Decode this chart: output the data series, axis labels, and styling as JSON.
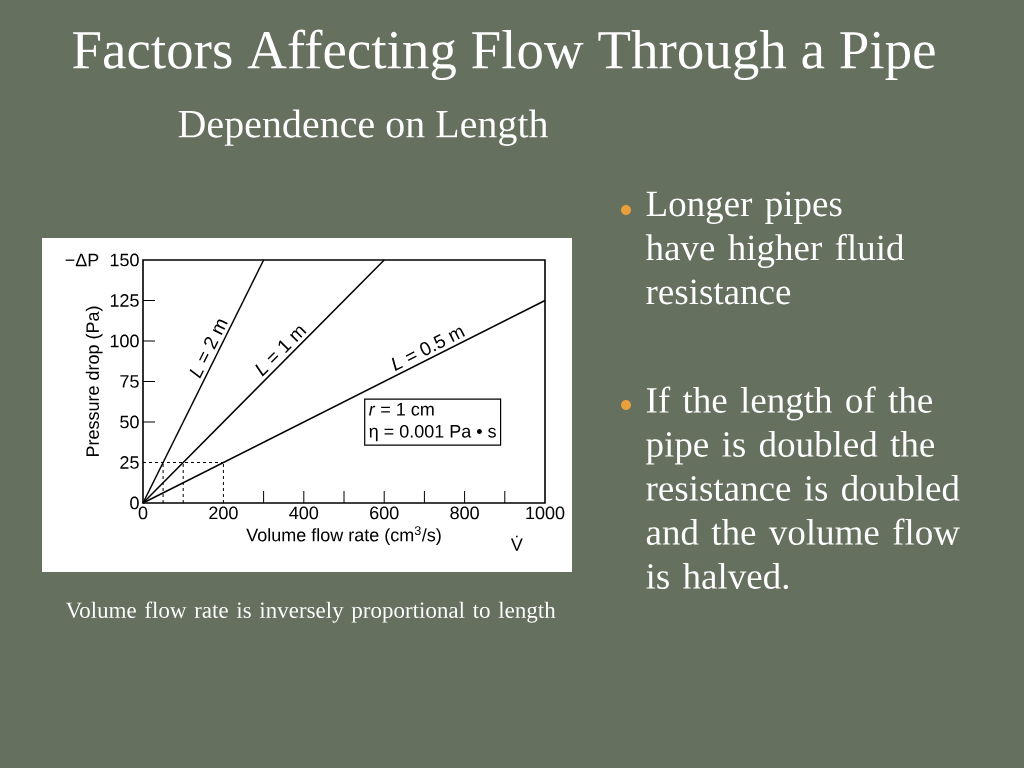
{
  "chart_data": {
    "type": "line",
    "title": "Factors Affecting Flow Through a Pipe",
    "subtitle": "Dependence on Length",
    "xlabel": "Volume flow rate (cm$^{3}$/s)",
    "ylabel": "Pressure drop (Pa)",
    "xlim": [
      0,
      1000
    ],
    "ylim": [
      0,
      150
    ],
    "xticks": [
      0,
      200,
      {
        "value": 300,
        "label": null
      },
      400,
      {
        "value": 500,
        "label": null
      },
      600,
      {
        "value": 700,
        "label": null
      },
      800,
      {
        "value": 900,
        "label": null
      },
      1000
    ],
    "yticks": [
      0,
      25,
      50,
      75,
      100,
      125,
      150
    ],
    "line_style": "solid",
    "series": [
      {
        "name": "*L* = 2 m",
        "color": "#000000",
        "x": [
          0,
          300
        ],
        "values": [
          0,
          150
        ]
      },
      {
        "name": "*L* = 1 m",
        "color": "#000000",
        "x": [
          0,
          600
        ],
        "values": [
          0,
          150
        ]
      },
      {
        "name": "*L* = 0.5 m",
        "color": "#000000",
        "x": [
          0,
          1000
        ],
        "values": [
          0,
          125
        ]
      },
      {
        "color": "#000000",
        "line_style": "dashed",
        "x": [
          0,
          200
        ],
        "values": [
          25,
          25
        ]
      },
      {
        "color": "#000000",
        "line_style": "dashed",
        "x": [
          50,
          50
        ],
        "values": [
          0,
          25
        ]
      },
      {
        "color": "#000000",
        "line_style": "dashed",
        "x": [
          100,
          100
        ],
        "values": [
          0,
          25
        ]
      },
      {
        "color": "#000000",
        "line_style": "dashed",
        "x": [
          200,
          200
        ],
        "values": [
          0,
          25
        ]
      }
    ],
    "annotations": [
      "−ΔP",
      "V̇",
      "*r* = 1 cm",
      "η = 0.001 Pa • s",
      "Volume flow rate is inversely proportional to length",
      "Longer pipes have higher fluid resistance",
      "If the length of the pipe is doubled the resistance is doubled and the volume flow is halved."
    ]
  }
}
